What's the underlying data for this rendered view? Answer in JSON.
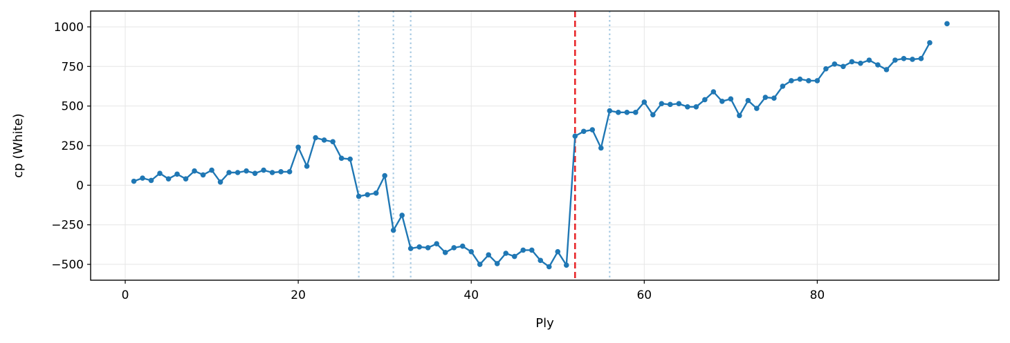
{
  "chart_data": {
    "type": "line",
    "title": "",
    "xlabel": "Ply",
    "ylabel": "cp (White)",
    "xlim": [
      -4,
      101
    ],
    "ylim": [
      -600,
      1100
    ],
    "grid": true,
    "legend": "none",
    "x_ticks": [
      0,
      20,
      40,
      60,
      80
    ],
    "y_ticks": [
      -500,
      -250,
      0,
      250,
      500,
      750,
      1000
    ],
    "x_tick_labels": [
      "0",
      "20",
      "40",
      "60",
      "80"
    ],
    "y_tick_labels": [
      "−500",
      "−250",
      "0",
      "250",
      "500",
      "750",
      "1000"
    ],
    "series": [
      {
        "color": "#1f77b4",
        "x": [
          1,
          2,
          3,
          4,
          5,
          6,
          7,
          8,
          9,
          10,
          11,
          12,
          13,
          14,
          15,
          16,
          17,
          18,
          19,
          20,
          21,
          22,
          23,
          24,
          25,
          26,
          27,
          28,
          29,
          30,
          31,
          32,
          33,
          34,
          35,
          36,
          37,
          38,
          39,
          40,
          41,
          42,
          43,
          44,
          45,
          46,
          47,
          48,
          49,
          50,
          51,
          52,
          53,
          54,
          55,
          56,
          57,
          58,
          59,
          60,
          61,
          62,
          63,
          64,
          65,
          66,
          67,
          68,
          69,
          70,
          71,
          72,
          73,
          74,
          75,
          76,
          77,
          78,
          79,
          80,
          81,
          82,
          83,
          84,
          85,
          86,
          87,
          88,
          89,
          90,
          91,
          92,
          93
        ],
        "y": [
          25,
          45,
          30,
          75,
          40,
          70,
          40,
          90,
          65,
          95,
          20,
          80,
          80,
          90,
          75,
          95,
          80,
          85,
          85,
          240,
          120,
          300,
          285,
          275,
          170,
          165,
          -70,
          -60,
          -50,
          60,
          -285,
          -190,
          -400,
          -390,
          -395,
          -370,
          -425,
          -395,
          -385,
          -420,
          -500,
          -440,
          -495,
          -430,
          -450,
          -410,
          -410,
          -475,
          -515,
          -420,
          -505,
          310,
          340,
          350,
          235,
          470,
          460,
          460,
          460,
          525,
          445,
          515,
          510,
          515,
          495,
          495,
          540,
          590,
          530,
          545,
          440,
          535,
          485,
          555,
          550,
          625,
          660,
          670,
          660,
          660,
          735,
          765,
          750,
          780,
          770,
          790,
          760,
          730,
          790,
          800,
          795,
          800,
          900
        ]
      }
    ],
    "isolated_points": [
      {
        "x": 95,
        "y": 1020
      }
    ],
    "vertical_lines": [
      {
        "x": 52,
        "style": "dashed",
        "color": "#e8282b"
      },
      {
        "x": 27,
        "style": "dotted",
        "color": "#a9cbe3"
      },
      {
        "x": 31,
        "style": "dotted",
        "color": "#a9cbe3"
      },
      {
        "x": 33,
        "style": "dotted",
        "color": "#a9cbe3"
      },
      {
        "x": 56,
        "style": "dotted",
        "color": "#a9cbe3"
      }
    ]
  }
}
